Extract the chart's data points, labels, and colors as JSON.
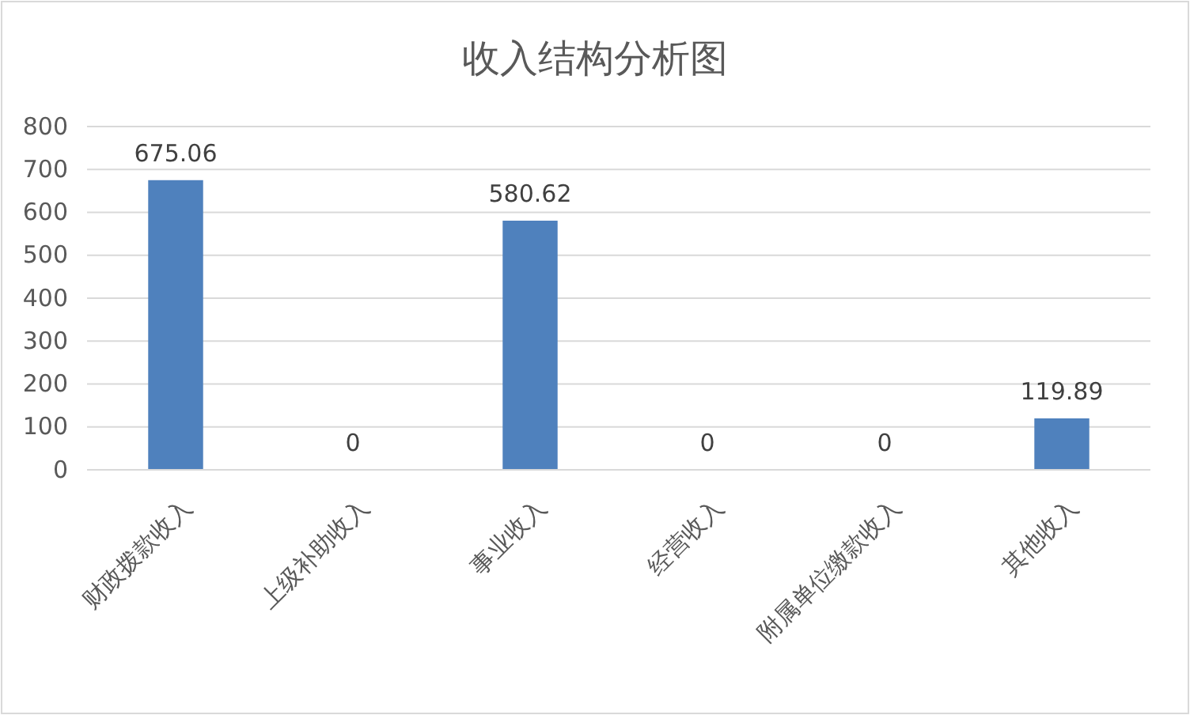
{
  "chart_data": {
    "type": "bar",
    "title": "收入结构分析图",
    "categories": [
      "财政拨款收入",
      "上级补助收入",
      "事业收入",
      "经营收入",
      "附属单位缴款收入",
      "其他收入"
    ],
    "values": [
      675.06,
      0,
      580.62,
      0,
      0,
      119.89
    ],
    "color": "#4f81bd",
    "ylim": [
      0,
      800
    ],
    "yticks": [
      0,
      100,
      200,
      300,
      400,
      500,
      600,
      700,
      800
    ],
    "grid": "y",
    "data_labels": true
  }
}
